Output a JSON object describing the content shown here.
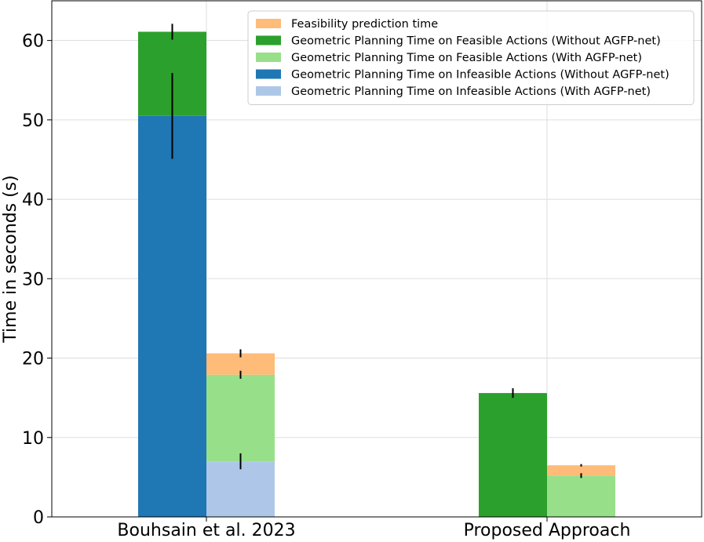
{
  "chart_data": {
    "type": "bar",
    "stacked": true,
    "grouped": true,
    "ylabel": "Time in seconds (s)",
    "xlabel": "",
    "ylim": [
      0,
      65
    ],
    "yticks": [
      0,
      10,
      20,
      30,
      40,
      50,
      60
    ],
    "grid": true,
    "legend_position": "top-right",
    "categories": [
      "Bouhsain et al. 2023",
      "Proposed Approach"
    ],
    "legend": [
      {
        "key": "feas_pred",
        "name": "Feasibility prediction time",
        "color": "#ffbb78"
      },
      {
        "key": "feas_without",
        "name": "Geometric Planning Time on Feasible Actions (Without AGFP-net)",
        "color": "#2ca02c"
      },
      {
        "key": "feas_with",
        "name": "Geometric Planning Time on Feasible Actions (With AGFP-net)",
        "color": "#98df8a"
      },
      {
        "key": "infeas_without",
        "name": "Geometric Planning Time on Infeasible Actions (Without AGFP-net)",
        "color": "#1f77b4"
      },
      {
        "key": "infeas_with",
        "name": "Geometric Planning Time on Infeasible Actions (With AGFP-net)",
        "color": "#aec7e8"
      }
    ],
    "bars": [
      {
        "category": 0,
        "side": "left",
        "segments": [
          {
            "key": "infeas_without",
            "value": 50.5
          },
          {
            "key": "feas_without",
            "value": 10.6
          }
        ],
        "errors": [
          {
            "center": 50.5,
            "err": 5.4
          },
          {
            "center": 61.1,
            "err": 1.0
          }
        ]
      },
      {
        "category": 0,
        "side": "right",
        "segments": [
          {
            "key": "infeas_with",
            "value": 7.0
          },
          {
            "key": "feas_with",
            "value": 10.9
          },
          {
            "key": "feas_pred",
            "value": 2.7
          }
        ],
        "errors": [
          {
            "center": 7.0,
            "err": 1.0
          },
          {
            "center": 17.9,
            "err": 0.5
          },
          {
            "center": 20.6,
            "err": 0.5
          }
        ]
      },
      {
        "category": 1,
        "side": "left",
        "segments": [
          {
            "key": "feas_without",
            "value": 15.6
          }
        ],
        "errors": [
          {
            "center": 15.6,
            "err": 0.6
          }
        ]
      },
      {
        "category": 1,
        "side": "right",
        "segments": [
          {
            "key": "feas_with",
            "value": 5.2
          },
          {
            "key": "feas_pred",
            "value": 1.3
          }
        ],
        "errors": [
          {
            "center": 5.2,
            "err": 0.3
          },
          {
            "center": 6.5,
            "err": 0.15
          }
        ]
      }
    ]
  }
}
